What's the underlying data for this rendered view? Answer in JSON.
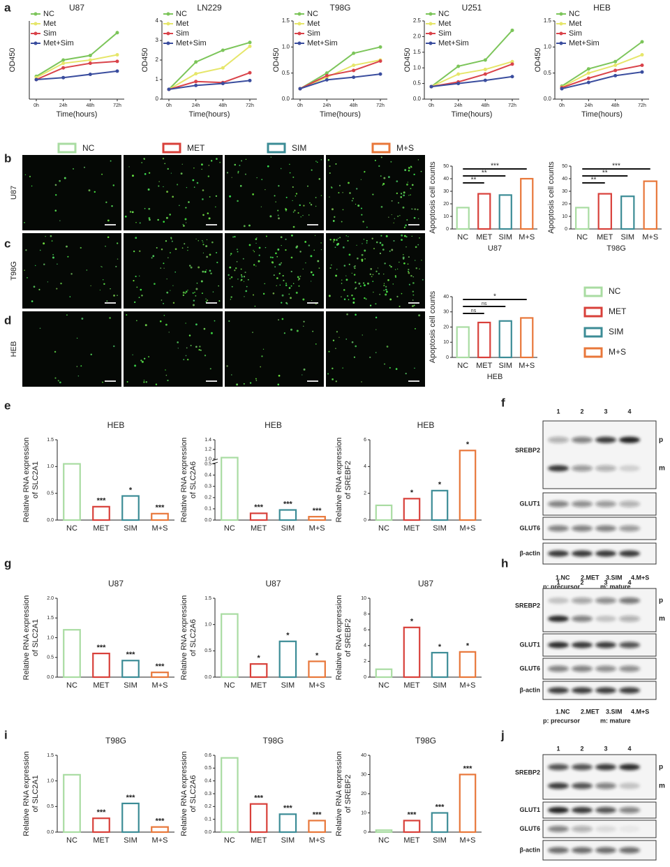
{
  "chart_data": [
    {
      "type": "line",
      "title": "U87",
      "xlabel": "Time(hours)",
      "ylabel": "OD450",
      "categories": [
        "0h",
        "24h",
        "48h",
        "72h"
      ],
      "ylim": [
        0,
        1.2
      ],
      "series": [
        {
          "name": "NC",
          "color": "#7cc55a",
          "values": [
            0.35,
            0.6,
            0.67,
            1.02
          ]
        },
        {
          "name": "Met",
          "color": "#e6e66a",
          "values": [
            0.33,
            0.55,
            0.6,
            0.68
          ]
        },
        {
          "name": "Sim",
          "color": "#d9434a",
          "values": [
            0.3,
            0.48,
            0.55,
            0.58
          ]
        },
        {
          "name": "Met+Sim",
          "color": "#3a4d9e",
          "values": [
            0.3,
            0.33,
            0.38,
            0.43
          ]
        }
      ]
    },
    {
      "type": "line",
      "title": "LN229",
      "xlabel": "Time(hours)",
      "ylabel": "OD450",
      "categories": [
        "0h",
        "24h",
        "48h",
        "72h"
      ],
      "ylim": [
        0,
        4
      ],
      "yticks": [
        0,
        1,
        2,
        3,
        4
      ],
      "series": [
        {
          "name": "NC",
          "color": "#7cc55a",
          "values": [
            0.5,
            1.9,
            2.5,
            2.9
          ]
        },
        {
          "name": "Met",
          "color": "#e6e66a",
          "values": [
            0.5,
            1.3,
            1.6,
            2.7
          ]
        },
        {
          "name": "Sim",
          "color": "#d9434a",
          "values": [
            0.5,
            0.9,
            0.85,
            1.35
          ]
        },
        {
          "name": "Met+Sim",
          "color": "#3a4d9e",
          "values": [
            0.5,
            0.7,
            0.8,
            0.95
          ]
        }
      ]
    },
    {
      "type": "line",
      "title": "T98G",
      "xlabel": "Time(hours)",
      "ylabel": "OD450",
      "categories": [
        "0h",
        "24h",
        "48h",
        "72h"
      ],
      "ylim": [
        0,
        1.5
      ],
      "yticks": [
        {
          "value": 0,
          "label": "0.0"
        },
        0.5,
        {
          "value": 1,
          "label": "1.0"
        },
        1.5
      ],
      "series": [
        {
          "name": "NC",
          "color": "#7cc55a",
          "values": [
            0.2,
            0.5,
            0.88,
            1.0
          ]
        },
        {
          "name": "Met",
          "color": "#e6e66a",
          "values": [
            0.2,
            0.42,
            0.65,
            0.75
          ]
        },
        {
          "name": "Sim",
          "color": "#d9434a",
          "values": [
            0.2,
            0.45,
            0.55,
            0.73
          ]
        },
        {
          "name": "Met+Sim",
          "color": "#3a4d9e",
          "values": [
            0.2,
            0.37,
            0.42,
            0.48
          ]
        }
      ]
    },
    {
      "type": "line",
      "title": "U251",
      "xlabel": "Time(hours)",
      "ylabel": "OD450",
      "categories": [
        "0h",
        "24h",
        "48h",
        "72h"
      ],
      "ylim": [
        0,
        2.5
      ],
      "yticks": [
        {
          "value": 0,
          "label": "0.0"
        },
        0.5,
        {
          "value": 1,
          "label": "1.0"
        },
        1.5,
        {
          "value": 2,
          "label": "2.0"
        },
        2.5
      ],
      "series": [
        {
          "name": "NC",
          "color": "#7cc55a",
          "values": [
            0.4,
            1.05,
            1.25,
            2.2
          ]
        },
        {
          "name": "Met",
          "color": "#e6e66a",
          "values": [
            0.4,
            0.8,
            0.95,
            1.2
          ]
        },
        {
          "name": "Sim",
          "color": "#d9434a",
          "values": [
            0.4,
            0.55,
            0.8,
            1.12
          ]
        },
        {
          "name": "Met+Sim",
          "color": "#3a4d9e",
          "values": [
            0.4,
            0.5,
            0.6,
            0.72
          ]
        }
      ]
    },
    {
      "type": "line",
      "title": "HEB",
      "xlabel": "Time(hours)",
      "ylabel": "OD450",
      "categories": [
        "0h",
        "24h",
        "48h",
        "72h"
      ],
      "ylim": [
        0,
        1.5
      ],
      "yticks": [
        {
          "value": 0,
          "label": "0.0"
        },
        0.5,
        {
          "value": 1,
          "label": "1.0"
        },
        1.5
      ],
      "series": [
        {
          "name": "NC",
          "color": "#7cc55a",
          "values": [
            0.25,
            0.58,
            0.72,
            1.1
          ]
        },
        {
          "name": "Met",
          "color": "#e6e66a",
          "values": [
            0.23,
            0.5,
            0.65,
            0.85
          ]
        },
        {
          "name": "Sim",
          "color": "#d9434a",
          "values": [
            0.22,
            0.4,
            0.55,
            0.65
          ]
        },
        {
          "name": "Met+Sim",
          "color": "#3a4d9e",
          "values": [
            0.2,
            0.32,
            0.45,
            0.52
          ]
        }
      ]
    },
    {
      "type": "bar",
      "xlabel": "U87",
      "ylabel": [
        "Apoptosis cell counts"
      ],
      "categories": [
        "NC",
        "MET",
        "SIM",
        "M+S"
      ],
      "values": [
        17,
        28,
        27,
        40
      ],
      "colors": [
        "#a9dca2",
        "#d8403a",
        "#3c8c96",
        "#e8773a"
      ],
      "ylim": [
        0,
        50
      ],
      "yticks": [
        0,
        10,
        20,
        30,
        40,
        50
      ],
      "significance": [
        "**",
        "**",
        "***"
      ]
    },
    {
      "type": "bar",
      "xlabel": "T98G",
      "ylabel": [
        "Apoptosis cell counts"
      ],
      "categories": [
        "NC",
        "MET",
        "SIM",
        "M+S"
      ],
      "values": [
        17,
        28,
        26,
        38
      ],
      "colors": [
        "#a9dca2",
        "#d8403a",
        "#3c8c96",
        "#e8773a"
      ],
      "ylim": [
        0,
        50
      ],
      "yticks": [
        0,
        10,
        20,
        30,
        40,
        50
      ],
      "significance": [
        "**",
        "**",
        "***"
      ]
    },
    {
      "type": "bar",
      "xlabel": "HEB",
      "ylabel": [
        "Apoptosis cell counts"
      ],
      "categories": [
        "NC",
        "MET",
        "SIM",
        "M+S"
      ],
      "values": [
        20,
        23,
        24,
        26
      ],
      "colors": [
        "#a9dca2",
        "#d8403a",
        "#3c8c96",
        "#e8773a"
      ],
      "ylim": [
        0,
        40
      ],
      "yticks": [
        0,
        10,
        20,
        30,
        40
      ],
      "significance": [
        "ns",
        "ns",
        "*"
      ]
    },
    {
      "type": "bar",
      "title": "HEB",
      "ylabel": [
        "Relative RNA expression",
        "of SLC2A1"
      ],
      "categories": [
        "NC",
        "MET",
        "SIM",
        "M+S"
      ],
      "values": [
        1.05,
        0.25,
        0.45,
        0.12
      ],
      "colors": [
        "#a9dca2",
        "#d8403a",
        "#3c8c96",
        "#e8773a"
      ],
      "ylim": [
        0,
        1.5
      ],
      "yticks": [
        {
          "value": 0,
          "label": "0.0"
        },
        0.5,
        {
          "value": 1,
          "label": "1.0"
        },
        1.5
      ],
      "annotations": [
        null,
        "***",
        "*",
        "***"
      ]
    },
    {
      "type": "bar",
      "title": "HEB",
      "ylabel": [
        "Relative RNA expression",
        "of SLC2A6"
      ],
      "categories": [
        "NC",
        "MET",
        "SIM",
        "M+S"
      ],
      "values": [
        1.03,
        0.06,
        0.09,
        0.03
      ],
      "colors": [
        "#a9dca2",
        "#d8403a",
        "#3c8c96",
        "#e8773a"
      ],
      "ylim": [
        0,
        1.4
      ],
      "ybreak": [
        0.5,
        1.0
      ],
      "yticks": [
        {
          "value": 0,
          "label": "0.0"
        },
        0.1,
        0.2,
        0.3,
        0.4,
        0.5,
        {
          "value": 1,
          "label": "1.0"
        },
        1.2,
        1.4
      ],
      "annotations": [
        null,
        "***",
        "***",
        "***"
      ]
    },
    {
      "type": "bar",
      "title": "HEB",
      "ylabel": [
        "Relative RNA expression",
        "of SREBF2"
      ],
      "categories": [
        "NC",
        "MET",
        "SIM",
        "M+S"
      ],
      "values": [
        1.1,
        1.6,
        2.2,
        5.2
      ],
      "colors": [
        "#a9dca2",
        "#d8403a",
        "#3c8c96",
        "#e8773a"
      ],
      "ylim": [
        0,
        6
      ],
      "yticks": [
        0,
        2,
        4,
        6
      ],
      "annotations": [
        null,
        "*",
        "*",
        "*"
      ]
    },
    {
      "type": "bar",
      "title": "U87",
      "ylabel": [
        "Relative RNA expression",
        "of SLC2A1"
      ],
      "categories": [
        "NC",
        "MET",
        "SIM",
        "M+S"
      ],
      "values": [
        1.2,
        0.6,
        0.42,
        0.12
      ],
      "colors": [
        "#a9dca2",
        "#d8403a",
        "#3c8c96",
        "#e8773a"
      ],
      "ylim": [
        0,
        2
      ],
      "yticks": [
        {
          "value": 0,
          "label": "0.0"
        },
        0.5,
        {
          "value": 1,
          "label": "1.0"
        },
        1.5,
        {
          "value": 2,
          "label": "2.0"
        }
      ],
      "annotations": [
        null,
        "***",
        "***",
        "***"
      ]
    },
    {
      "type": "bar",
      "title": "U87",
      "ylabel": [
        "Relative RNA expression",
        "of SLC2A6"
      ],
      "categories": [
        "NC",
        "MET",
        "SIM",
        "M+S"
      ],
      "values": [
        1.2,
        0.25,
        0.68,
        0.3
      ],
      "colors": [
        "#a9dca2",
        "#d8403a",
        "#3c8c96",
        "#e8773a"
      ],
      "ylim": [
        0,
        1.5
      ],
      "yticks": [
        {
          "value": 0,
          "label": "0.0"
        },
        0.5,
        {
          "value": 1,
          "label": "1.0"
        },
        1.5
      ],
      "annotations": [
        null,
        "*",
        "*",
        "*"
      ]
    },
    {
      "type": "bar",
      "title": "U87",
      "ylabel": [
        "Relative RNA expression",
        "of SREBF2"
      ],
      "categories": [
        "NC",
        "MET",
        "SIM",
        "M+S"
      ],
      "values": [
        1,
        6.3,
        3.1,
        3.2
      ],
      "colors": [
        "#a9dca2",
        "#d8403a",
        "#3c8c96",
        "#e8773a"
      ],
      "ylim": [
        0,
        10
      ],
      "yticks": [
        0,
        2,
        4,
        6,
        8,
        10
      ],
      "annotations": [
        null,
        "*",
        "*",
        "*"
      ]
    },
    {
      "type": "bar",
      "title": "T98G",
      "ylabel": [
        "Relative RNA expression",
        "of SLC2A1"
      ],
      "categories": [
        "NC",
        "MET",
        "SIM",
        "M+S"
      ],
      "values": [
        1.12,
        0.27,
        0.56,
        0.1
      ],
      "colors": [
        "#a9dca2",
        "#d8403a",
        "#3c8c96",
        "#e8773a"
      ],
      "ylim": [
        0,
        1.5
      ],
      "yticks": [
        {
          "value": 0,
          "label": "0.0"
        },
        0.5,
        {
          "value": 1,
          "label": "1.0"
        },
        1.5
      ],
      "annotations": [
        null,
        "***",
        "***",
        "***"
      ]
    },
    {
      "type": "bar",
      "title": "T98G",
      "ylabel": [
        "Relative RNA expression",
        "of SLC2A6"
      ],
      "categories": [
        "NC",
        "MET",
        "SIM",
        "M+S"
      ],
      "values": [
        0.58,
        0.22,
        0.14,
        0.09
      ],
      "colors": [
        "#a9dca2",
        "#d8403a",
        "#3c8c96",
        "#e8773a"
      ],
      "ylim": [
        0,
        0.6
      ],
      "yticks": [
        {
          "value": 0,
          "label": "0.0"
        },
        0.1,
        0.2,
        0.3,
        0.4,
        0.5,
        0.6
      ],
      "annotations": [
        null,
        "***",
        "***",
        "***"
      ]
    },
    {
      "type": "bar",
      "title": "T98G",
      "ylabel": [
        "Relative RNA expression",
        "of SREBF2"
      ],
      "categories": [
        "NC",
        "MET",
        "SIM",
        "M+S"
      ],
      "values": [
        1,
        6,
        10,
        30
      ],
      "colors": [
        "#a9dca2",
        "#d8403a",
        "#3c8c96",
        "#e8773a"
      ],
      "ylim": [
        0,
        40
      ],
      "yticks": [
        0,
        10,
        20,
        30,
        40
      ],
      "annotations": [
        null,
        "***",
        "***",
        "***"
      ]
    }
  ],
  "figure": {
    "panel_letters": [
      "a",
      "b",
      "c",
      "d",
      "e",
      "f",
      "g",
      "h",
      "i",
      "j"
    ],
    "legend": [
      {
        "name": "NC",
        "color": "#a9dca2"
      },
      {
        "name": "MET",
        "color": "#d8403a"
      },
      {
        "name": "SIM",
        "color": "#3c8c96"
      },
      {
        "name": "M+S",
        "color": "#e8773a"
      }
    ],
    "legend_right": [
      {
        "name": "NC",
        "color": "#a9dca2"
      },
      {
        "name": "MET",
        "color": "#d8403a"
      },
      {
        "name": "SIM",
        "color": "#3c8c96"
      },
      {
        "name": "M+S",
        "color": "#e8773a"
      }
    ],
    "image_rows": [
      "U87",
      "T98G",
      "HEB"
    ],
    "blots": [
      {
        "lanes": [
          "1",
          "2",
          "3",
          "4"
        ],
        "proteins": [
          "SREBP2",
          "GLUT1",
          "GLUT6",
          "β-actin"
        ],
        "forms": [
          "p",
          "m"
        ],
        "footer": [
          "1.NC",
          "2.MET",
          "3.SIM",
          "4.M+S",
          "p: precursor",
          "m: mature"
        ]
      },
      {
        "lanes": [
          "1",
          "2",
          "3",
          "4"
        ],
        "proteins": [
          "SREBP2",
          "GLUT1",
          "GLUT6",
          "β-actin"
        ],
        "forms": [
          "p",
          "m"
        ],
        "footer": [
          "1.NC",
          "2.MET",
          "3.SIM",
          "4.M+S",
          "p: precursor",
          "m: mature"
        ]
      },
      {
        "lanes": [
          "1",
          "2",
          "3",
          "4"
        ],
        "proteins": [
          "SREBP2",
          "GLUT1",
          "GLUT6",
          "β-actin"
        ],
        "forms": [
          "p",
          "m"
        ]
      }
    ]
  }
}
